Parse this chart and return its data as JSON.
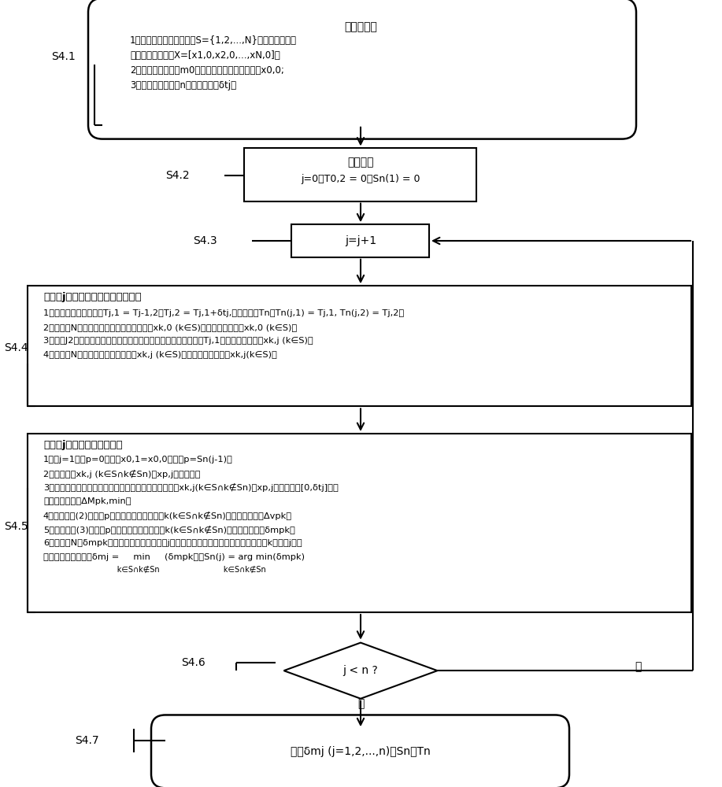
{
  "bg_color": "#ffffff",
  "fig_width": 9.17,
  "fig_height": 10.0,
  "s41_label": "S4.1",
  "s42_label": "S4.2",
  "s43_label": "S4.3",
  "s44_label": "S4.4",
  "s45_label": "S4.5",
  "s46_label": "S4.6",
  "s47_label": "S4.7",
  "box1_title": "输入参数：",
  "box1_line1": "1、候选空间目标序号集合S={1,2,...,N}及其初始时刻的",
  "box1_line2": "密切轨道根数集合X=[x1,0,x2,0,...,xN,0]；",
  "box1_line3": "2、飞行器初始质量m0及初始时刻的密切轨道根数x0,0;",
  "box1_line4": "3、交会对象的数量n以及时间间隔δtj。",
  "box2_title": "初始化：",
  "box2_line1": "j=0，T0,2 = 0，Sn(1) = 0",
  "box3_content": "j=j+1",
  "box4_title": "更新第j次交会过程的时间和状态：",
  "box4_line1": "1、计算交会起止时间：Tj,1 = Tj-1,2，Tj,2 = Tj,1+δtj,并更新向量Tn：Tn(j,1) = Tj,1, Tn(j,2) = Tj,2。",
  "box4_line2": "2、将所有N个空间目标的初始密切轨道根数xk,0 (k∈S)转化为平轨道根数xk,0 (k∈S)。",
  "box4_line3": "3、采用J2摄动下的平轨道根数随时间变化的微分方程，计算得到Tj,1时刻的平轨道根数xk,j (k∈S)。",
  "box4_line4": "4、将所有N个空间目标的平轨道根数xk,j (k∈S)转化为密切轨道根数xk,j(k∈S)。",
  "box5_title": "选取第j个最优的交会对象：",
  "box5_line1": "1、若j=1，则p=0，且令x0,1=x0,0，否则p=Sn(j-1)；",
  "box5_line2": "2、计算每个xk,j (k∈S∩k∉Sn)与xp,j之间的差；",
  "box5_line3": "3、采用优化算法（例如遗传算法、模式搜索法等），对xk,j(k∈S∩k∉Sn)及xp,j计算时间段[0,δtj]内最",
  "box5_line4": "小的平近点角差ΔMpk,min；",
  "box5_line5": "4、采用公式(2)计算从p转移到每一个候选对象k(k∈S∩k∉Sn)的速度增量需求Δvpk；",
  "box5_line6": "5、采用公式(3)计算从p转移到每一个候选对象k(k∈S∩k∉Sn)的燃料消耗需求δmpk；",
  "box5_line7": "6、从所有N个δmpk中选择最小的那个作为第j个交会对象的燃料消耗代价，并将对应的k作为第j个交",
  "box5_line8": "会对象的序号，即：δmj =     min     (δmpk），Sn(j) = arg min(δmpk)",
  "box5_line8sub": "                              k∈S∩k∉Sn                          k∈S∩k∉Sn",
  "box6_content": "j < n ?",
  "box6_yes": "是",
  "box6_no": "否",
  "box7_content": "输出δmj (j=1,2,...,n)、Sn、Tn"
}
